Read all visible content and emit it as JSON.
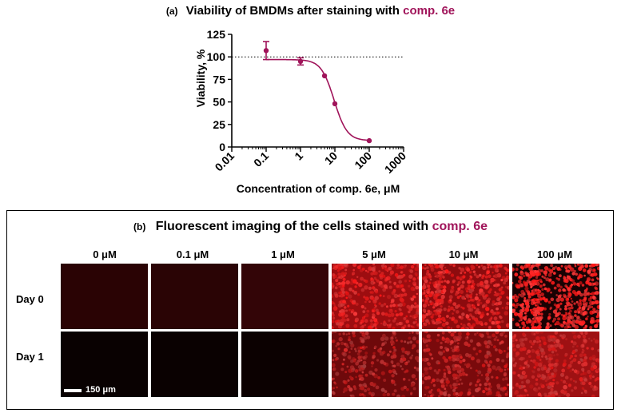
{
  "panel_a": {
    "tag": "(a)",
    "title_main": "Viability of BMDMs after staining with",
    "title_compound": "comp. 6e",
    "accent_color": "#a0145a"
  },
  "chart_data": {
    "type": "scatter",
    "title": "Viability of BMDMs after staining with comp. 6e",
    "xlabel": "Concentration of comp. 6e, μM",
    "ylabel": "Viability, %",
    "xscale": "log",
    "xlim": [
      0.01,
      1000
    ],
    "ylim": [
      0,
      125
    ],
    "xticks": [
      "0.01",
      "0.1",
      "1",
      "10",
      "100",
      "1000"
    ],
    "yticks": [
      "0",
      "25",
      "50",
      "75",
      "100",
      "125"
    ],
    "reference_line": 100,
    "grid": false,
    "legend": "none",
    "series": [
      {
        "x": [
          0.1,
          1,
          5,
          10,
          100
        ],
        "y": [
          107,
          95,
          79,
          48,
          7
        ],
        "error": [
          10,
          4,
          0,
          0,
          0
        ],
        "color": "#a0145a",
        "fit": "sigmoidal"
      }
    ]
  },
  "panel_b": {
    "tag": "(b)",
    "title_main": "Fluorescent imaging of the cells stained with",
    "title_compound": "comp. 6e",
    "columns": [
      "0 μM",
      "0.1 μM",
      "1 μM",
      "5 μM",
      "10 μM",
      "100 μM"
    ],
    "rows": [
      "Day 0",
      "Day 1"
    ],
    "scale_bar": "150 μm"
  }
}
